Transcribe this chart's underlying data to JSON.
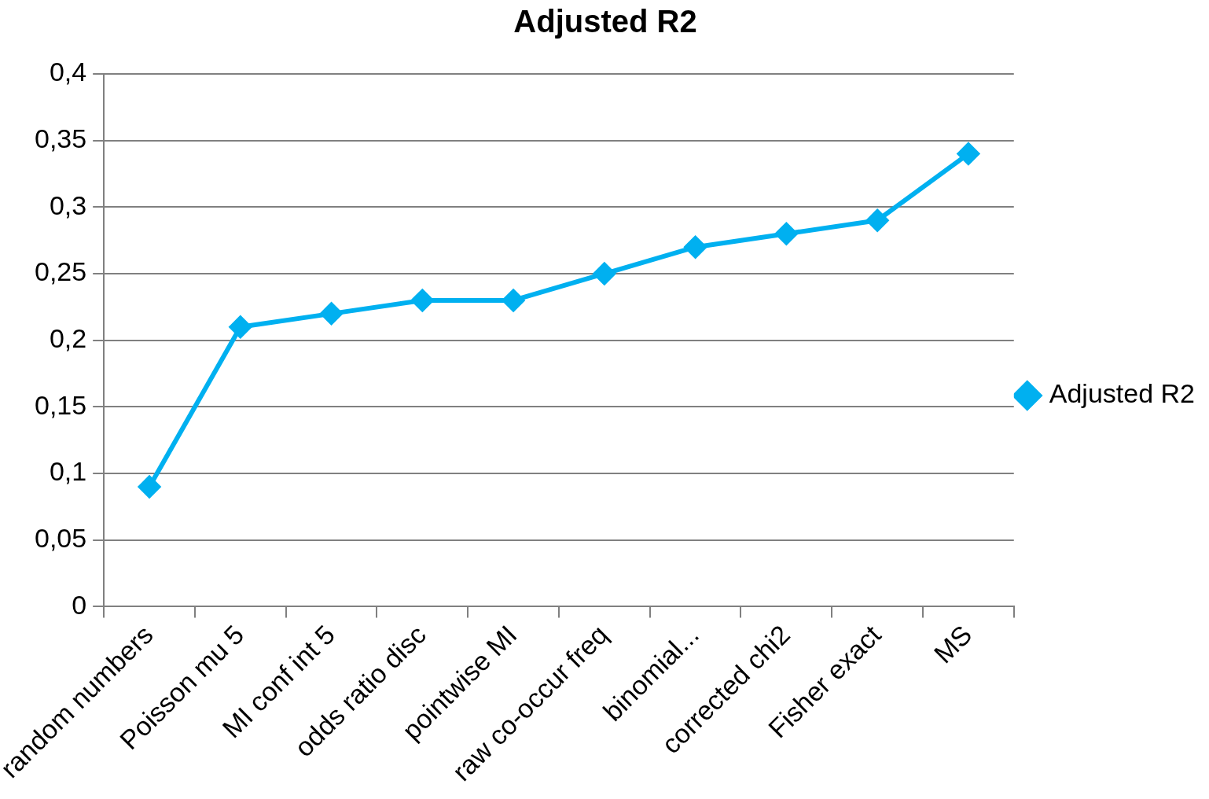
{
  "chart_data": {
    "type": "line",
    "title": "Adjusted R2",
    "categories": [
      "random numbers",
      "Poisson mu 5",
      "MI conf int 5",
      "odds ratio disc",
      "pointwise MI",
      "raw co-occur freq",
      "binomial...",
      "corrected chi2",
      "Fisher exact",
      "MS"
    ],
    "series": [
      {
        "name": "Adjusted R2",
        "color": "#00b0f0",
        "values": [
          0.09,
          0.21,
          0.22,
          0.23,
          0.23,
          0.25,
          0.27,
          0.28,
          0.29,
          0.34
        ]
      }
    ],
    "ylim": [
      0,
      0.4
    ],
    "yticks": [
      0,
      {
        "value": 0.05,
        "label": "0,05"
      },
      {
        "value": 0.1,
        "label": "0,1"
      },
      {
        "value": 0.15,
        "label": "0,15"
      },
      {
        "value": 0.2,
        "label": "0,2"
      },
      {
        "value": 0.25,
        "label": "0,25"
      },
      {
        "value": 0.3,
        "label": "0,3"
      },
      {
        "value": 0.35,
        "label": "0,35"
      },
      {
        "value": 0.4,
        "label": "0,4"
      }
    ],
    "grid": "y",
    "legend": "right",
    "marker": "diamond",
    "line_style": "solid"
  }
}
